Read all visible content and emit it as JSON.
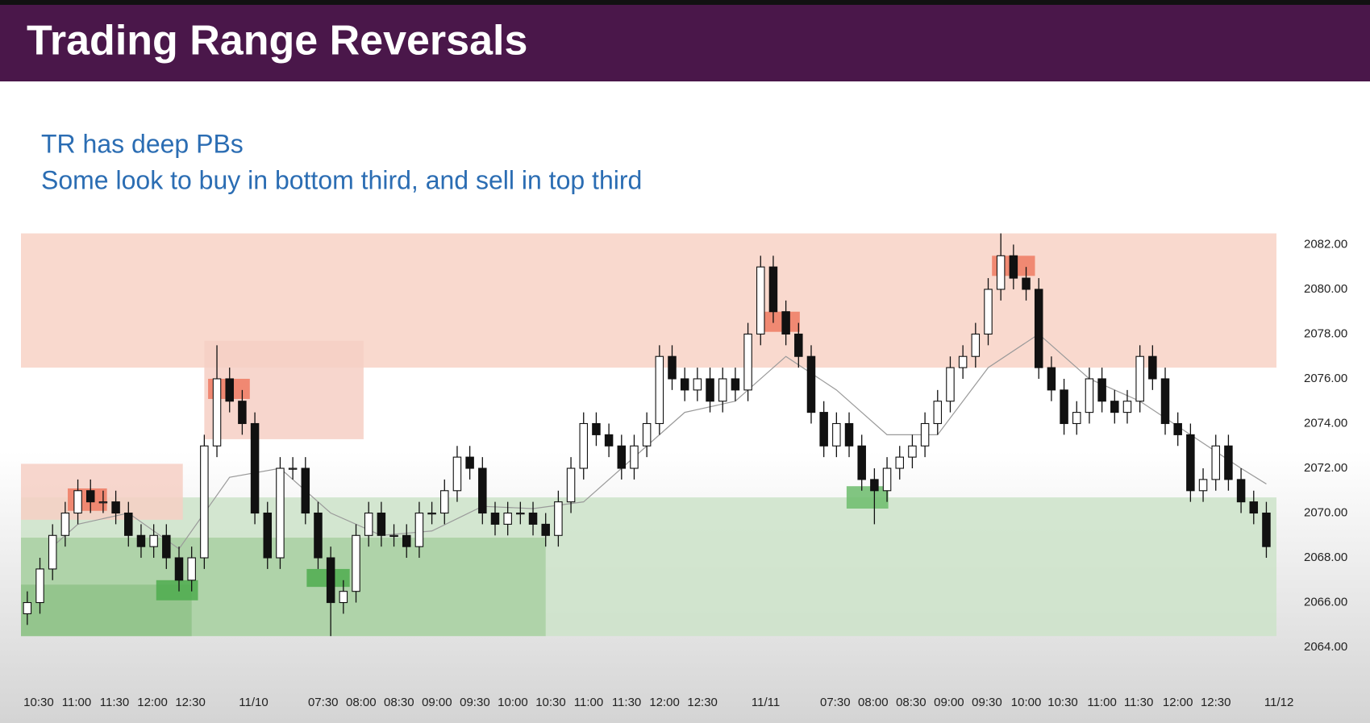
{
  "header": {
    "title": "Trading Range Reversals"
  },
  "notes": [
    "TR has deep PBs",
    "Some look to buy in bottom third, and sell in top third"
  ],
  "chart_data": {
    "type": "candlestick",
    "open": [
      2065.5,
      2066,
      2067.5,
      2069,
      2070,
      2071,
      2070.5,
      2070.5,
      2070,
      2069,
      2068.5,
      2069,
      2068,
      2067,
      2068,
      2073,
      2076,
      2075,
      2074,
      2070,
      2068,
      2072,
      2072,
      2070,
      2068,
      2066,
      2066.5,
      2069,
      2070,
      2069,
      2069,
      2068.5,
      2070,
      2070,
      2071,
      2072.5,
      2072,
      2070,
      2069.5,
      2070,
      2070,
      2069.5,
      2069,
      2070.5,
      2072,
      2074,
      2073.5,
      2073,
      2072,
      2073,
      2074,
      2077,
      2076,
      2075.5,
      2076,
      2075,
      2076,
      2075.5,
      2078,
      2081,
      2079,
      2078,
      2077,
      2074.5,
      2073,
      2074,
      2073,
      2071.5,
      2071,
      2072,
      2072.5,
      2073,
      2074,
      2075,
      2076.5,
      2077,
      2078,
      2080,
      2081.5,
      2080.5,
      2080,
      2076.5,
      2075.5,
      2074,
      2074.5,
      2076,
      2075,
      2074.5,
      2075,
      2077,
      2076,
      2074,
      2073.5,
      2071,
      2071.5,
      2073,
      2071.5,
      2070.5,
      2070
    ],
    "high": [
      2066.5,
      2068,
      2069.5,
      2070.5,
      2071.5,
      2071.5,
      2071,
      2071,
      2070.5,
      2069.5,
      2069.5,
      2069.5,
      2068.5,
      2068.5,
      2073.5,
      2077.5,
      2076.5,
      2075.5,
      2074.5,
      2070.5,
      2072.5,
      2072.5,
      2072.5,
      2070.5,
      2068.5,
      2067,
      2069.5,
      2070.5,
      2070.5,
      2069.5,
      2069.5,
      2070.5,
      2070.5,
      2071.5,
      2073,
      2073,
      2072.5,
      2070.5,
      2070.5,
      2070.5,
      2070.5,
      2070,
      2071,
      2072.5,
      2074.5,
      2074.5,
      2074,
      2073.5,
      2073.5,
      2074.5,
      2077.5,
      2077.5,
      2076.5,
      2076.5,
      2076.5,
      2076.5,
      2076.5,
      2078.5,
      2081.5,
      2081.5,
      2079.5,
      2078.5,
      2077.5,
      2075,
      2074.5,
      2074.5,
      2073.5,
      2072,
      2072.5,
      2073,
      2073.5,
      2074.5,
      2075.5,
      2077,
      2077.5,
      2078.5,
      2080.5,
      2082.5,
      2082,
      2081,
      2080.5,
      2077,
      2076,
      2075,
      2076.5,
      2076.5,
      2075.5,
      2075.5,
      2077.5,
      2077.5,
      2076.5,
      2074.5,
      2074,
      2072,
      2073.5,
      2073.5,
      2072,
      2071,
      2070.5
    ],
    "low": [
      2065,
      2065.5,
      2067,
      2068.5,
      2069.5,
      2070,
      2070,
      2069.5,
      2068.5,
      2068,
      2068,
      2067.5,
      2066.5,
      2066.5,
      2067.5,
      2072.5,
      2074.5,
      2073.5,
      2069.5,
      2067.5,
      2067.5,
      2071.5,
      2069.5,
      2067.5,
      2064.5,
      2065.5,
      2066,
      2068.5,
      2068.5,
      2068.5,
      2068,
      2068,
      2069.5,
      2069.5,
      2070.5,
      2071.5,
      2069.5,
      2069,
      2069,
      2069.5,
      2069,
      2068.5,
      2068.5,
      2070,
      2071.5,
      2073,
      2072.5,
      2071.5,
      2071.5,
      2072.5,
      2073.5,
      2075.5,
      2075,
      2075,
      2074.5,
      2074.5,
      2075,
      2075,
      2077.5,
      2078.5,
      2077.5,
      2076.5,
      2074,
      2072.5,
      2072.5,
      2072.5,
      2071,
      2069.5,
      2070.5,
      2071.5,
      2072,
      2072.5,
      2073.5,
      2074.5,
      2076,
      2076.5,
      2077.5,
      2079.5,
      2080,
      2079.5,
      2076,
      2075,
      2073.5,
      2073.5,
      2074,
      2074.5,
      2074,
      2074,
      2074.5,
      2075.5,
      2073.5,
      2073,
      2070.5,
      2070.5,
      2071,
      2071,
      2070,
      2069.5,
      2068
    ],
    "close": [
      2066,
      2067.5,
      2069,
      2070,
      2071,
      2070.5,
      2070.5,
      2070,
      2069,
      2068.5,
      2069,
      2068,
      2067,
      2068,
      2073,
      2076,
      2075,
      2074,
      2070,
      2068,
      2072,
      2072,
      2070,
      2068,
      2066,
      2066.5,
      2069,
      2070,
      2069,
      2069,
      2068.5,
      2070,
      2070,
      2071,
      2072.5,
      2072,
      2070,
      2069.5,
      2070,
      2070,
      2069.5,
      2069,
      2070.5,
      2072,
      2074,
      2073.5,
      2073,
      2072,
      2073,
      2074,
      2077,
      2076,
      2075.5,
      2076,
      2075,
      2076,
      2075.5,
      2078,
      2081,
      2079,
      2078,
      2077,
      2074.5,
      2073,
      2074,
      2073,
      2071.5,
      2071,
      2072,
      2072.5,
      2073,
      2074,
      2075,
      2076.5,
      2077,
      2078,
      2080,
      2081.5,
      2080.5,
      2080,
      2076.5,
      2075.5,
      2074,
      2074.5,
      2076,
      2075,
      2074.5,
      2075,
      2077,
      2076,
      2074,
      2073.5,
      2071,
      2071.5,
      2073,
      2071.5,
      2070.5,
      2070,
      2068.5
    ],
    "up_color": "#ffffff",
    "down_color": "#111111",
    "ma": {
      "color": "#9a9a9a",
      "x": [
        2,
        4,
        8,
        12,
        16,
        20,
        24,
        28,
        32,
        36,
        40,
        44,
        48,
        52,
        56,
        60,
        64,
        68,
        72,
        76,
        80,
        84,
        88,
        92,
        96,
        98
      ],
      "values": [
        2068.5,
        2069.5,
        2070,
        2068.4,
        2071.6,
        2072,
        2070,
        2069,
        2069.2,
        2070.3,
        2070.2,
        2070.5,
        2072.5,
        2074.5,
        2075,
        2077,
        2075.5,
        2073.5,
        2073.5,
        2076.5,
        2078,
        2076,
        2075,
        2073.5,
        2072,
        2071.3
      ]
    },
    "zones": [
      {
        "x": [
          -0.5,
          98.8
        ],
        "y": [
          2076.5,
          2082.5
        ],
        "color": "#f8d2c6"
      },
      {
        "x": [
          -0.5,
          98.8
        ],
        "y": [
          2064.5,
          2070.7
        ],
        "color": "#cde3c9"
      },
      {
        "x": [
          -0.5,
          41
        ],
        "y": [
          2064.5,
          2068.9
        ],
        "color": "#a9d0a2"
      },
      {
        "x": [
          -0.5,
          13
        ],
        "y": [
          2064.5,
          2066.8
        ],
        "color": "#8fc288"
      },
      {
        "x": [
          -0.5,
          12.3
        ],
        "y": [
          2069.7,
          2072.2
        ],
        "color": "#f6cfc4"
      },
      {
        "x": [
          14,
          26.6
        ],
        "y": [
          2073.3,
          2077.7
        ],
        "color": "#f6cfc4"
      },
      {
        "x": [
          3.2,
          6.3
        ],
        "y": [
          2070.1,
          2071.1
        ],
        "color": "#ef7a62"
      },
      {
        "x": [
          14.3,
          17.6
        ],
        "y": [
          2075.1,
          2076
        ],
        "color": "#ef7a62"
      },
      {
        "x": [
          57.9,
          61.1
        ],
        "y": [
          2078.1,
          2079
        ],
        "color": "#ef7a62"
      },
      {
        "x": [
          76.3,
          79.7
        ],
        "y": [
          2080.6,
          2081.5
        ],
        "color": "#ef7a62"
      },
      {
        "x": [
          10.2,
          13.5
        ],
        "y": [
          2066.1,
          2067
        ],
        "color": "#4fac4f"
      },
      {
        "x": [
          22.1,
          25.5
        ],
        "y": [
          2066.7,
          2067.5
        ],
        "color": "#4fac4f"
      },
      {
        "x": [
          64.8,
          68.1
        ],
        "y": [
          2070.2,
          2071.2
        ],
        "color": "#6cbc6c"
      }
    ],
    "xlim": [
      -0.5,
      98.8
    ],
    "ylim": [
      2063.3,
      2082.7
    ],
    "yticks": [
      {
        "value": 2064,
        "label": "2064.00"
      },
      {
        "value": 2066,
        "label": "2066.00"
      },
      {
        "value": 2068,
        "label": "2068.00"
      },
      {
        "value": 2070,
        "label": "2070.00"
      },
      {
        "value": 2072,
        "label": "2072.00"
      },
      {
        "value": 2074,
        "label": "2074.00"
      },
      {
        "value": 2076,
        "label": "2076.00"
      },
      {
        "value": 2078,
        "label": "2078.00"
      },
      {
        "value": 2080,
        "label": "2080.00"
      },
      {
        "value": 2082,
        "label": "2082.00"
      }
    ],
    "xticks": [
      {
        "value": 0.9,
        "label": "10:30"
      },
      {
        "value": 3.9,
        "label": "11:00"
      },
      {
        "value": 6.9,
        "label": "11:30"
      },
      {
        "value": 9.9,
        "label": "12:00"
      },
      {
        "value": 12.9,
        "label": "12:30"
      },
      {
        "value": 17.9,
        "label": "11/10"
      },
      {
        "value": 23.4,
        "label": "07:30"
      },
      {
        "value": 26.4,
        "label": "08:00"
      },
      {
        "value": 29.4,
        "label": "08:30"
      },
      {
        "value": 32.4,
        "label": "09:00"
      },
      {
        "value": 35.4,
        "label": "09:30"
      },
      {
        "value": 38.4,
        "label": "10:00"
      },
      {
        "value": 41.4,
        "label": "10:30"
      },
      {
        "value": 44.4,
        "label": "11:00"
      },
      {
        "value": 47.4,
        "label": "11:30"
      },
      {
        "value": 50.4,
        "label": "12:00"
      },
      {
        "value": 53.4,
        "label": "12:30"
      },
      {
        "value": 58.4,
        "label": "11/11"
      },
      {
        "value": 63.9,
        "label": "07:30"
      },
      {
        "value": 66.9,
        "label": "08:00"
      },
      {
        "value": 69.9,
        "label": "08:30"
      },
      {
        "value": 72.9,
        "label": "09:00"
      },
      {
        "value": 75.9,
        "label": "09:30"
      },
      {
        "value": 79,
        "label": "10:00"
      },
      {
        "value": 81.9,
        "label": "10:30"
      },
      {
        "value": 85,
        "label": "11:00"
      },
      {
        "value": 87.9,
        "label": "11:30"
      },
      {
        "value": 91,
        "label": "12:00"
      },
      {
        "value": 94,
        "label": "12:30"
      },
      {
        "value": 99,
        "label": "11/12"
      }
    ]
  }
}
